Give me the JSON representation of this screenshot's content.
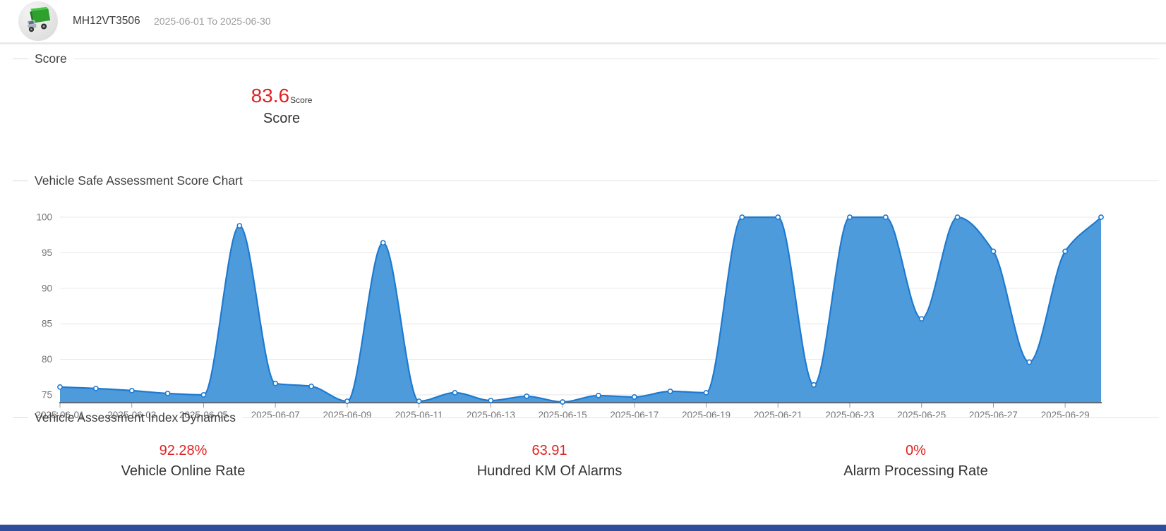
{
  "header": {
    "vehicle_id": "MH12VT3506",
    "date_range": "2025-06-01 To 2025-06-30",
    "avatar_icon": "truck-icon"
  },
  "sections": {
    "score": {
      "title": "Score",
      "value": "83.6",
      "value_suffix": "Score",
      "label": "Score"
    },
    "chart": {
      "title": "Vehicle Safe Assessment Score Chart"
    },
    "dynamics": {
      "title": "Vehicle Assessment Index Dynamics",
      "metrics": [
        {
          "value": "92.28%",
          "label": "Vehicle Online Rate"
        },
        {
          "value": "63.91",
          "label": "Hundred KM Of Alarms"
        },
        {
          "value": "0%",
          "label": "Alarm Processing Rate"
        }
      ]
    }
  },
  "chart_data": {
    "type": "area",
    "title": "Vehicle Safe Assessment Score Chart",
    "x": [
      "2025-06-01",
      "2025-06-02",
      "2025-06-03",
      "2025-06-04",
      "2025-06-05",
      "2025-06-06",
      "2025-06-07",
      "2025-06-08",
      "2025-06-09",
      "2025-06-10",
      "2025-06-11",
      "2025-06-12",
      "2025-06-13",
      "2025-06-14",
      "2025-06-15",
      "2025-06-16",
      "2025-06-17",
      "2025-06-18",
      "2025-06-19",
      "2025-06-20",
      "2025-06-21",
      "2025-06-22",
      "2025-06-23",
      "2025-06-24",
      "2025-06-25",
      "2025-06-26",
      "2025-06-27",
      "2025-06-28",
      "2025-06-29",
      "2025-06-30"
    ],
    "values": [
      76.1,
      75.9,
      75.6,
      75.2,
      75.0,
      98.8,
      76.6,
      76.2,
      74.1,
      96.4,
      74.1,
      75.3,
      74.2,
      74.8,
      74.0,
      74.9,
      74.7,
      75.5,
      75.3,
      100,
      100,
      76.4,
      100,
      100,
      85.7,
      100,
      95.2,
      79.6,
      95.2,
      100
    ],
    "xlabel": "",
    "ylabel": "",
    "yticks": [
      75,
      80,
      85,
      90,
      95,
      100
    ],
    "ylim": [
      73.9,
      100
    ],
    "x_label_every": 2,
    "grid": true,
    "smooth": true,
    "legend_position": "none",
    "colors": {
      "line": "#1d7ad0",
      "fill": "#4e9bdc",
      "marker_fill": "#ffffff",
      "gridline": "#e8e8ec",
      "axis_line": "#5f6a76",
      "tick_text": "#737373"
    }
  },
  "colors": {
    "accent_red": "#e02222",
    "footer": "#2e4d9d",
    "divider": "#e4e4e4"
  }
}
